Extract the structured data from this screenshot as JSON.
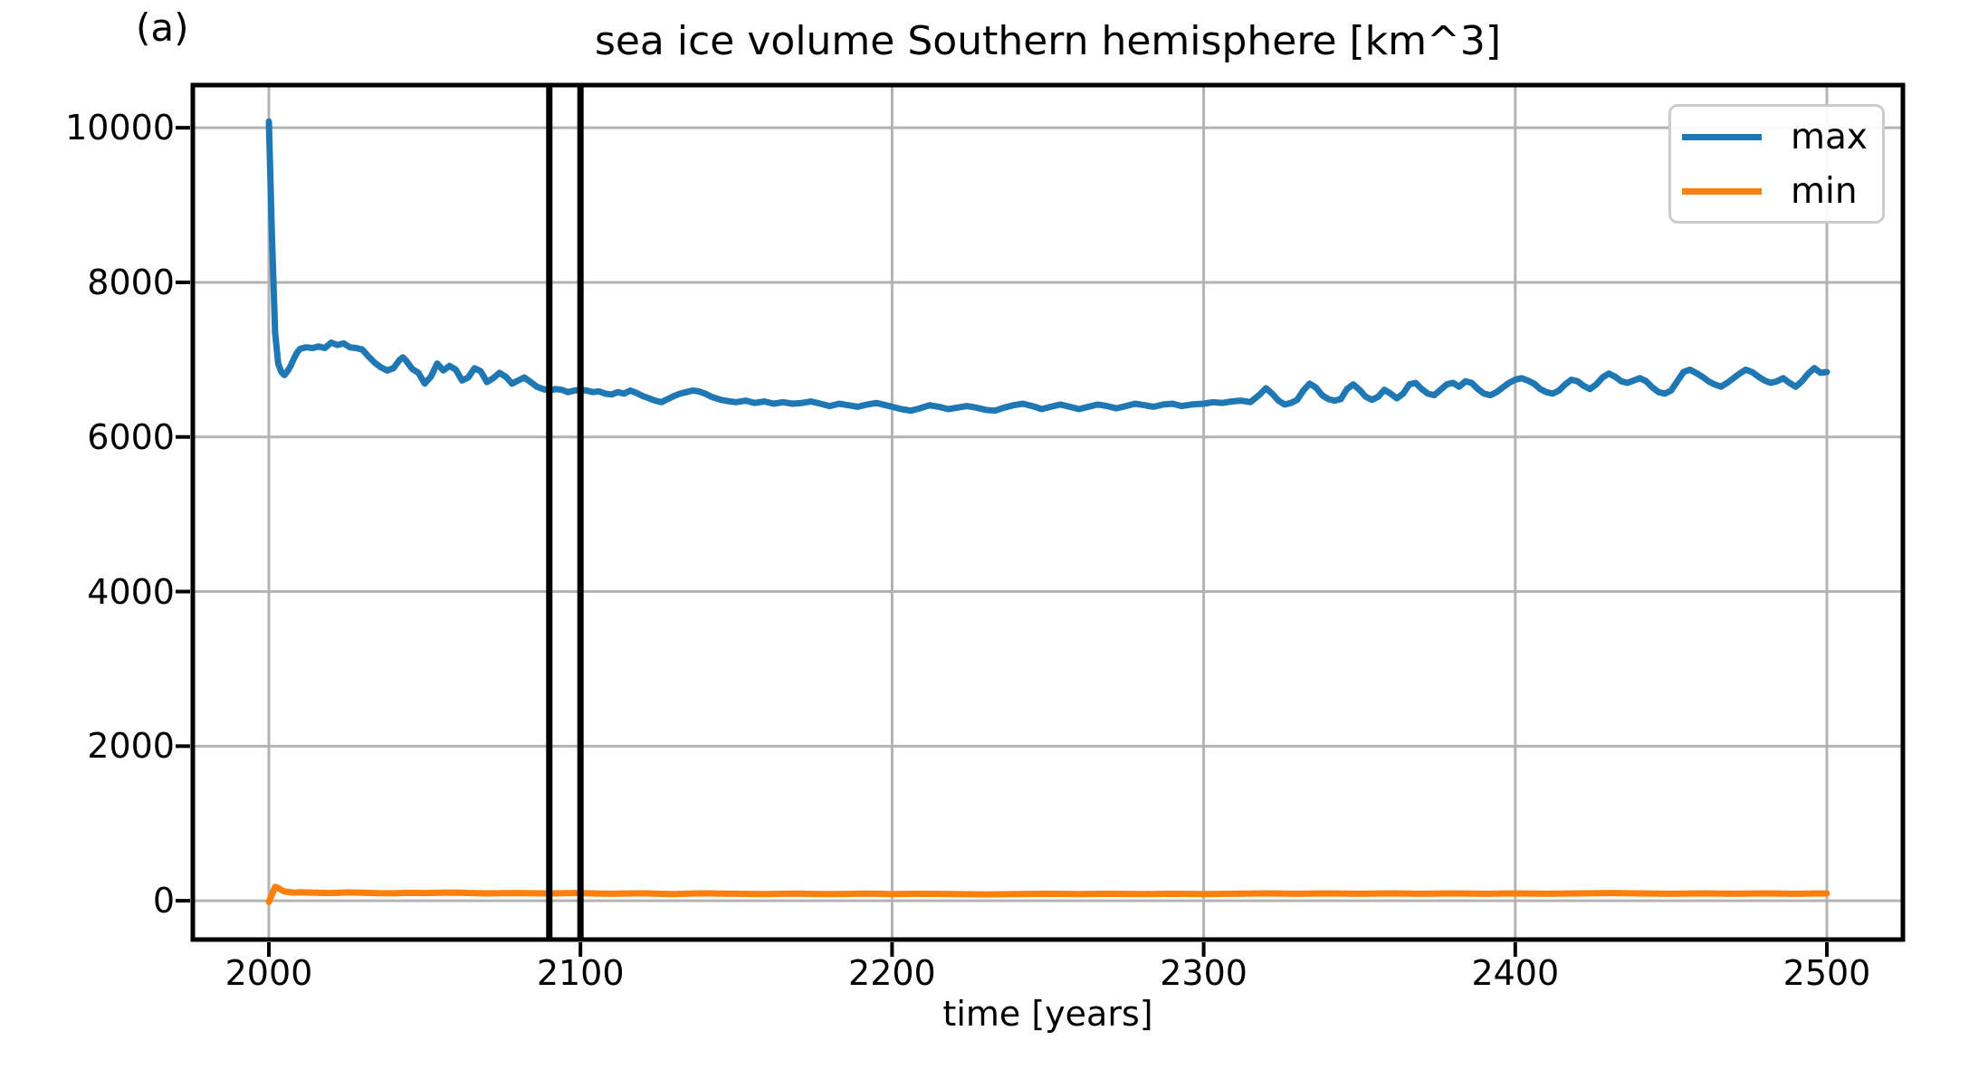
{
  "figure_label": "(a)",
  "chart_data": {
    "type": "line",
    "title": "sea ice volume Southern hemisphere [km^3]",
    "xlabel": "time [years]",
    "ylabel": "",
    "xlim": [
      1975.6,
      2524.4
    ],
    "ylim": [
      -502,
      10552
    ],
    "xticks": [
      2000,
      2100,
      2200,
      2300,
      2400,
      2500
    ],
    "yticks": [
      0,
      2000,
      4000,
      6000,
      8000,
      10000
    ],
    "grid": true,
    "grid_color": "#b3b3b3",
    "spine_color": "#000000",
    "legend_position": "upper right",
    "vlines": {
      "x": [
        2090,
        2100
      ],
      "color": "#000000"
    },
    "series": [
      {
        "name": "max",
        "color": "#1f77b4",
        "points": [
          [
            2000,
            10080
          ],
          [
            2001,
            8600
          ],
          [
            2002,
            7350
          ],
          [
            2003,
            6950
          ],
          [
            2004,
            6840
          ],
          [
            2005,
            6800
          ],
          [
            2006,
            6850
          ],
          [
            2007,
            6920
          ],
          [
            2008,
            7010
          ],
          [
            2009,
            7090
          ],
          [
            2010,
            7140
          ],
          [
            2012,
            7160
          ],
          [
            2014,
            7150
          ],
          [
            2016,
            7170
          ],
          [
            2018,
            7150
          ],
          [
            2020,
            7220
          ],
          [
            2022,
            7190
          ],
          [
            2024,
            7210
          ],
          [
            2026,
            7160
          ],
          [
            2028,
            7150
          ],
          [
            2030,
            7130
          ],
          [
            2032,
            7040
          ],
          [
            2034,
            6960
          ],
          [
            2036,
            6900
          ],
          [
            2038,
            6860
          ],
          [
            2040,
            6890
          ],
          [
            2042,
            7000
          ],
          [
            2043,
            7030
          ],
          [
            2044,
            6990
          ],
          [
            2046,
            6880
          ],
          [
            2048,
            6830
          ],
          [
            2050,
            6690
          ],
          [
            2052,
            6780
          ],
          [
            2054,
            6950
          ],
          [
            2056,
            6860
          ],
          [
            2058,
            6920
          ],
          [
            2060,
            6870
          ],
          [
            2062,
            6730
          ],
          [
            2064,
            6770
          ],
          [
            2066,
            6890
          ],
          [
            2068,
            6850
          ],
          [
            2070,
            6710
          ],
          [
            2072,
            6760
          ],
          [
            2074,
            6830
          ],
          [
            2076,
            6780
          ],
          [
            2078,
            6690
          ],
          [
            2080,
            6730
          ],
          [
            2082,
            6770
          ],
          [
            2084,
            6710
          ],
          [
            2086,
            6650
          ],
          [
            2088,
            6620
          ],
          [
            2090,
            6600
          ],
          [
            2092,
            6620
          ],
          [
            2094,
            6610
          ],
          [
            2096,
            6580
          ],
          [
            2098,
            6600
          ],
          [
            2100,
            6610
          ],
          [
            2102,
            6600
          ],
          [
            2104,
            6580
          ],
          [
            2106,
            6590
          ],
          [
            2108,
            6560
          ],
          [
            2110,
            6550
          ],
          [
            2112,
            6580
          ],
          [
            2114,
            6560
          ],
          [
            2116,
            6600
          ],
          [
            2118,
            6570
          ],
          [
            2120,
            6530
          ],
          [
            2122,
            6500
          ],
          [
            2124,
            6470
          ],
          [
            2126,
            6450
          ],
          [
            2128,
            6490
          ],
          [
            2130,
            6530
          ],
          [
            2132,
            6560
          ],
          [
            2134,
            6580
          ],
          [
            2136,
            6600
          ],
          [
            2138,
            6590
          ],
          [
            2140,
            6560
          ],
          [
            2142,
            6520
          ],
          [
            2145,
            6480
          ],
          [
            2148,
            6460
          ],
          [
            2150,
            6450
          ],
          [
            2153,
            6470
          ],
          [
            2156,
            6440
          ],
          [
            2159,
            6460
          ],
          [
            2162,
            6430
          ],
          [
            2165,
            6450
          ],
          [
            2168,
            6430
          ],
          [
            2171,
            6440
          ],
          [
            2174,
            6460
          ],
          [
            2177,
            6430
          ],
          [
            2180,
            6400
          ],
          [
            2183,
            6430
          ],
          [
            2186,
            6410
          ],
          [
            2189,
            6390
          ],
          [
            2192,
            6420
          ],
          [
            2195,
            6440
          ],
          [
            2198,
            6410
          ],
          [
            2200,
            6390
          ],
          [
            2203,
            6360
          ],
          [
            2206,
            6340
          ],
          [
            2209,
            6370
          ],
          [
            2212,
            6410
          ],
          [
            2215,
            6390
          ],
          [
            2218,
            6360
          ],
          [
            2221,
            6380
          ],
          [
            2224,
            6400
          ],
          [
            2227,
            6380
          ],
          [
            2230,
            6350
          ],
          [
            2233,
            6340
          ],
          [
            2236,
            6380
          ],
          [
            2239,
            6410
          ],
          [
            2242,
            6430
          ],
          [
            2245,
            6400
          ],
          [
            2248,
            6360
          ],
          [
            2251,
            6390
          ],
          [
            2254,
            6420
          ],
          [
            2257,
            6390
          ],
          [
            2260,
            6360
          ],
          [
            2263,
            6390
          ],
          [
            2266,
            6420
          ],
          [
            2269,
            6400
          ],
          [
            2272,
            6370
          ],
          [
            2275,
            6400
          ],
          [
            2278,
            6430
          ],
          [
            2281,
            6410
          ],
          [
            2284,
            6390
          ],
          [
            2287,
            6420
          ],
          [
            2290,
            6430
          ],
          [
            2293,
            6400
          ],
          [
            2296,
            6420
          ],
          [
            2300,
            6430
          ],
          [
            2303,
            6450
          ],
          [
            2306,
            6440
          ],
          [
            2309,
            6460
          ],
          [
            2312,
            6470
          ],
          [
            2315,
            6450
          ],
          [
            2318,
            6550
          ],
          [
            2320,
            6630
          ],
          [
            2322,
            6560
          ],
          [
            2324,
            6470
          ],
          [
            2326,
            6420
          ],
          [
            2328,
            6440
          ],
          [
            2330,
            6480
          ],
          [
            2332,
            6600
          ],
          [
            2334,
            6690
          ],
          [
            2336,
            6640
          ],
          [
            2338,
            6540
          ],
          [
            2340,
            6490
          ],
          [
            2342,
            6470
          ],
          [
            2344,
            6490
          ],
          [
            2346,
            6620
          ],
          [
            2348,
            6680
          ],
          [
            2350,
            6610
          ],
          [
            2352,
            6520
          ],
          [
            2354,
            6480
          ],
          [
            2356,
            6520
          ],
          [
            2358,
            6610
          ],
          [
            2360,
            6560
          ],
          [
            2362,
            6500
          ],
          [
            2364,
            6560
          ],
          [
            2366,
            6680
          ],
          [
            2368,
            6700
          ],
          [
            2370,
            6620
          ],
          [
            2372,
            6560
          ],
          [
            2374,
            6540
          ],
          [
            2376,
            6610
          ],
          [
            2378,
            6680
          ],
          [
            2380,
            6700
          ],
          [
            2382,
            6650
          ],
          [
            2384,
            6720
          ],
          [
            2386,
            6700
          ],
          [
            2388,
            6620
          ],
          [
            2390,
            6560
          ],
          [
            2392,
            6540
          ],
          [
            2394,
            6580
          ],
          [
            2396,
            6640
          ],
          [
            2398,
            6700
          ],
          [
            2400,
            6740
          ],
          [
            2402,
            6760
          ],
          [
            2404,
            6730
          ],
          [
            2406,
            6690
          ],
          [
            2408,
            6620
          ],
          [
            2410,
            6580
          ],
          [
            2412,
            6560
          ],
          [
            2414,
            6600
          ],
          [
            2416,
            6680
          ],
          [
            2418,
            6740
          ],
          [
            2420,
            6720
          ],
          [
            2422,
            6660
          ],
          [
            2424,
            6620
          ],
          [
            2426,
            6680
          ],
          [
            2428,
            6770
          ],
          [
            2430,
            6820
          ],
          [
            2432,
            6780
          ],
          [
            2434,
            6720
          ],
          [
            2436,
            6700
          ],
          [
            2438,
            6730
          ],
          [
            2440,
            6760
          ],
          [
            2442,
            6720
          ],
          [
            2444,
            6640
          ],
          [
            2446,
            6580
          ],
          [
            2448,
            6560
          ],
          [
            2450,
            6600
          ],
          [
            2452,
            6720
          ],
          [
            2454,
            6840
          ],
          [
            2456,
            6870
          ],
          [
            2458,
            6830
          ],
          [
            2460,
            6780
          ],
          [
            2462,
            6720
          ],
          [
            2464,
            6680
          ],
          [
            2466,
            6650
          ],
          [
            2468,
            6700
          ],
          [
            2470,
            6760
          ],
          [
            2472,
            6820
          ],
          [
            2474,
            6870
          ],
          [
            2476,
            6840
          ],
          [
            2478,
            6780
          ],
          [
            2480,
            6730
          ],
          [
            2482,
            6700
          ],
          [
            2484,
            6720
          ],
          [
            2486,
            6760
          ],
          [
            2488,
            6700
          ],
          [
            2490,
            6650
          ],
          [
            2492,
            6720
          ],
          [
            2494,
            6820
          ],
          [
            2496,
            6890
          ],
          [
            2498,
            6830
          ],
          [
            2500,
            6840
          ]
        ]
      },
      {
        "name": "min",
        "color": "#ff7f0e",
        "points": [
          [
            2000,
            -15
          ],
          [
            2001,
            80
          ],
          [
            2002,
            180
          ],
          [
            2003,
            165
          ],
          [
            2004,
            140
          ],
          [
            2005,
            120
          ],
          [
            2008,
            105
          ],
          [
            2010,
            110
          ],
          [
            2015,
            105
          ],
          [
            2020,
            100
          ],
          [
            2025,
            108
          ],
          [
            2030,
            104
          ],
          [
            2035,
            98
          ],
          [
            2040,
            96
          ],
          [
            2045,
            102
          ],
          [
            2050,
            100
          ],
          [
            2055,
            104
          ],
          [
            2060,
            106
          ],
          [
            2065,
            100
          ],
          [
            2070,
            95
          ],
          [
            2075,
            98
          ],
          [
            2080,
            100
          ],
          [
            2085,
            96
          ],
          [
            2090,
            94
          ],
          [
            2095,
            98
          ],
          [
            2100,
            100
          ],
          [
            2105,
            94
          ],
          [
            2110,
            90
          ],
          [
            2115,
            94
          ],
          [
            2120,
            96
          ],
          [
            2125,
            90
          ],
          [
            2130,
            86
          ],
          [
            2135,
            92
          ],
          [
            2140,
            96
          ],
          [
            2145,
            92
          ],
          [
            2150,
            90
          ],
          [
            2155,
            88
          ],
          [
            2160,
            86
          ],
          [
            2165,
            90
          ],
          [
            2170,
            92
          ],
          [
            2175,
            88
          ],
          [
            2180,
            86
          ],
          [
            2185,
            88
          ],
          [
            2190,
            92
          ],
          [
            2195,
            90
          ],
          [
            2200,
            86
          ],
          [
            2210,
            90
          ],
          [
            2220,
            86
          ],
          [
            2230,
            82
          ],
          [
            2240,
            86
          ],
          [
            2250,
            90
          ],
          [
            2260,
            86
          ],
          [
            2270,
            90
          ],
          [
            2280,
            86
          ],
          [
            2290,
            90
          ],
          [
            2300,
            86
          ],
          [
            2310,
            90
          ],
          [
            2320,
            95
          ],
          [
            2330,
            90
          ],
          [
            2340,
            95
          ],
          [
            2350,
            90
          ],
          [
            2360,
            95
          ],
          [
            2370,
            90
          ],
          [
            2380,
            95
          ],
          [
            2390,
            90
          ],
          [
            2400,
            95
          ],
          [
            2410,
            90
          ],
          [
            2420,
            95
          ],
          [
            2430,
            100
          ],
          [
            2440,
            95
          ],
          [
            2450,
            90
          ],
          [
            2460,
            95
          ],
          [
            2470,
            90
          ],
          [
            2480,
            95
          ],
          [
            2490,
            90
          ],
          [
            2500,
            95
          ]
        ]
      }
    ]
  },
  "legend": {
    "entries": [
      {
        "label": "max",
        "color": "#1f77b4"
      },
      {
        "label": "min",
        "color": "#ff7f0e"
      }
    ]
  }
}
